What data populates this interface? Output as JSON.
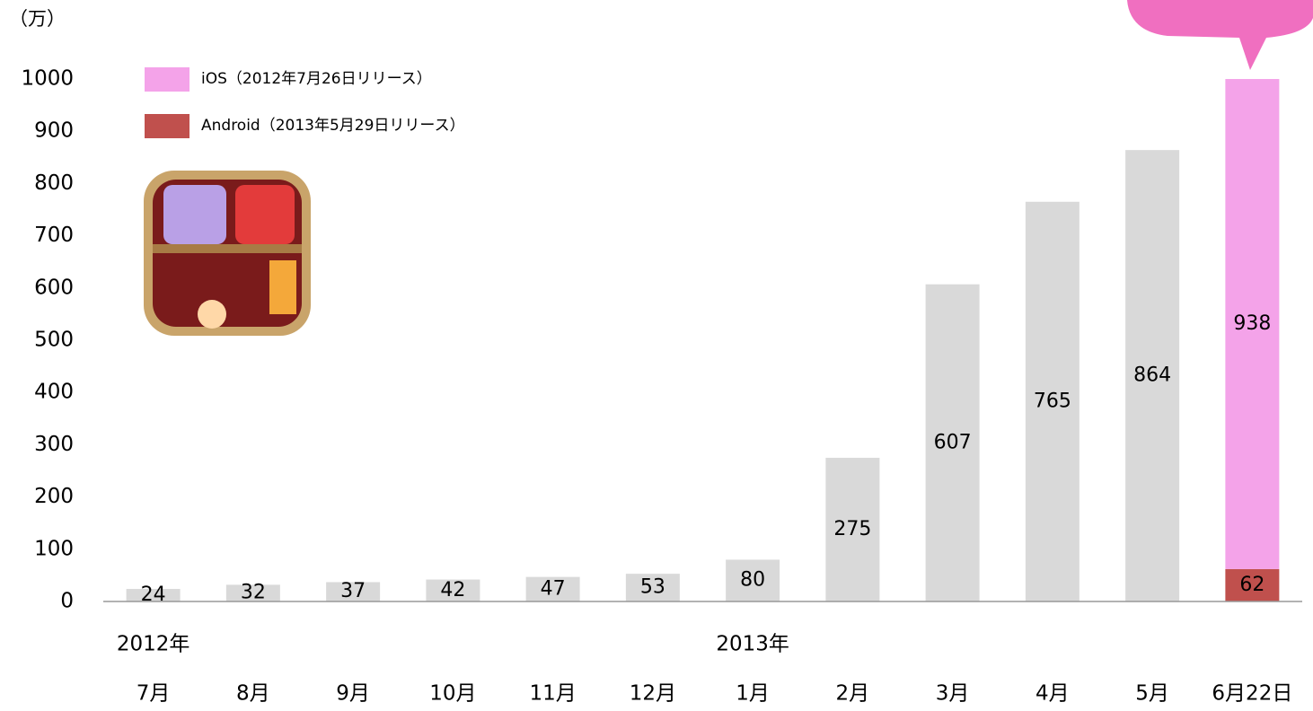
{
  "chart_data": {
    "type": "bar",
    "y_unit": "（万）",
    "categories": [
      "7月",
      "8月",
      "9月",
      "10月",
      "11月",
      "12月",
      "1月",
      "2月",
      "3月",
      "4月",
      "5月",
      "6月22日"
    ],
    "category_years": [
      "2012年",
      null,
      null,
      null,
      null,
      null,
      "2013年",
      null,
      null,
      null,
      null,
      null
    ],
    "values": [
      24,
      32,
      37,
      42,
      47,
      53,
      80,
      275,
      607,
      765,
      864,
      null
    ],
    "color": "#d9d9d9",
    "series": [
      {
        "name": "iOS（2012年7月26日リリース）",
        "color": "#f4a3e9",
        "values": [
          null,
          null,
          null,
          null,
          null,
          null,
          null,
          null,
          null,
          null,
          null,
          938
        ]
      },
      {
        "name": "Android（2013年5月29日リリース）",
        "color": "#c0504d",
        "values": [
          null,
          null,
          null,
          null,
          null,
          null,
          null,
          null,
          null,
          null,
          null,
          62
        ]
      }
    ],
    "ylim": [
      0,
      1000
    ],
    "yticks": [
      0,
      100,
      200,
      300,
      400,
      500,
      600,
      700,
      800,
      900,
      1000
    ]
  }
}
